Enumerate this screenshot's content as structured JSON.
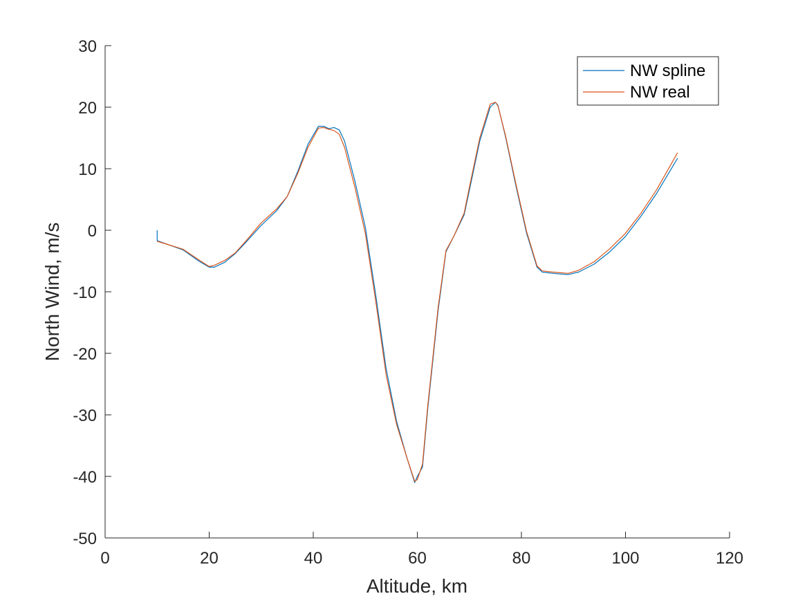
{
  "chart_data": {
    "type": "line",
    "title": "",
    "xlabel": "Altitude, km",
    "ylabel": "North Wind, m/s",
    "xlim": [
      0,
      120
    ],
    "ylim": [
      -50,
      30
    ],
    "xticks": [
      "0",
      "20",
      "40",
      "60",
      "80",
      "100",
      "120"
    ],
    "yticks": [
      "30",
      "20",
      "10",
      "0",
      "-10",
      "-20",
      "-30",
      "-40",
      "-50"
    ],
    "grid": false,
    "legend_location": "top-right",
    "series": [
      {
        "name": "NW spline",
        "color": "#0072BD",
        "x": [
          10,
          10,
          12,
          15,
          18,
          20,
          21,
          23,
          25,
          27,
          30,
          33,
          35,
          37,
          39,
          41,
          42,
          43,
          44,
          45,
          46,
          48,
          50,
          52,
          54,
          56,
          58,
          59.5,
          60,
          61,
          62,
          64,
          65.5,
          67,
          69,
          70,
          72,
          74,
          75,
          75.5,
          77,
          79,
          81,
          83,
          84,
          86,
          89,
          91,
          94,
          97,
          100,
          103,
          106,
          110
        ],
        "y": [
          0,
          -1.7,
          -2.3,
          -3.2,
          -5.0,
          -6.0,
          -6.0,
          -5.2,
          -3.8,
          -2.0,
          0.8,
          3.2,
          5.5,
          9.5,
          14.0,
          16.9,
          16.9,
          16.5,
          16.7,
          16.3,
          14.5,
          8.0,
          0.5,
          -10.5,
          -22.5,
          -31.0,
          -37.0,
          -41.0,
          -40.0,
          -38.5,
          -29.0,
          -13.0,
          -3.5,
          -1.0,
          2.5,
          6.5,
          14.5,
          20.0,
          20.8,
          20.3,
          15.0,
          7.0,
          -0.5,
          -6.0,
          -6.8,
          -7.0,
          -7.2,
          -6.8,
          -5.5,
          -3.5,
          -1.0,
          2.3,
          6.0,
          11.7
        ]
      },
      {
        "name": "NW real",
        "color": "#D95319",
        "x": [
          10,
          12,
          15,
          18,
          20,
          21,
          23,
          25,
          27,
          30,
          33,
          35,
          37,
          39,
          41,
          42,
          43,
          44,
          45,
          46,
          48,
          50,
          52,
          54,
          56,
          58,
          59.5,
          60,
          61,
          62,
          64,
          65.5,
          67,
          69,
          70,
          72,
          74,
          75,
          75.5,
          77,
          79,
          81,
          83,
          84,
          86,
          89,
          91,
          94,
          97,
          100,
          103,
          106,
          110
        ],
        "y": [
          -1.8,
          -2.3,
          -3.1,
          -4.8,
          -5.9,
          -5.7,
          -4.9,
          -3.7,
          -1.8,
          1.2,
          3.5,
          5.5,
          9.2,
          13.5,
          16.6,
          16.7,
          16.4,
          16.2,
          15.6,
          13.5,
          7.0,
          -0.5,
          -11.5,
          -23.5,
          -31.5,
          -37.0,
          -40.8,
          -40.5,
          -38.0,
          -28.5,
          -12.5,
          -3.3,
          -1.0,
          2.8,
          7.0,
          15.0,
          20.5,
          20.8,
          20.2,
          15.2,
          7.3,
          -0.2,
          -5.8,
          -6.6,
          -6.8,
          -7.0,
          -6.5,
          -5.1,
          -3.0,
          -0.5,
          2.8,
          6.6,
          12.6
        ]
      }
    ]
  }
}
